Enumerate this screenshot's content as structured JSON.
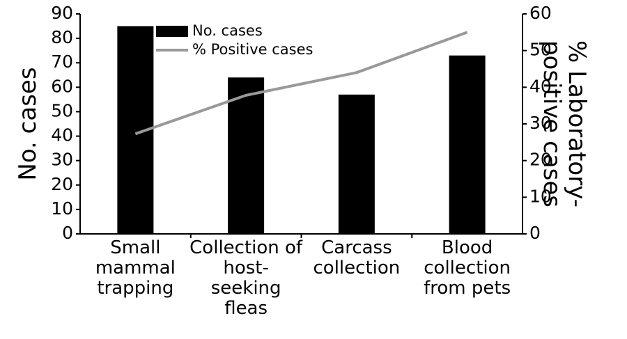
{
  "chart_data": {
    "type": "bar",
    "categories": [
      "Small mammal trapping",
      "Collection of host-seeking fleas",
      "Carcass collection",
      "Blood collection from pets"
    ],
    "series": [
      {
        "name": "No. cases",
        "type": "bar",
        "color": "#000000",
        "values": [
          85,
          64,
          57,
          73
        ]
      },
      {
        "name": "% Positive cases",
        "type": "line",
        "axis": "y2",
        "color": "#999999",
        "values": [
          27.3,
          37.8,
          44,
          55
        ]
      }
    ],
    "ylabel": "No. cases",
    "y2label": "% Laboratory-positive cases",
    "ylim": [
      0,
      90
    ],
    "yticks": [
      0,
      10,
      20,
      30,
      40,
      50,
      60,
      70,
      80,
      90
    ],
    "y2lim": [
      0,
      60
    ],
    "y2ticks": [
      0,
      10,
      20,
      30,
      40,
      50,
      60
    ]
  }
}
